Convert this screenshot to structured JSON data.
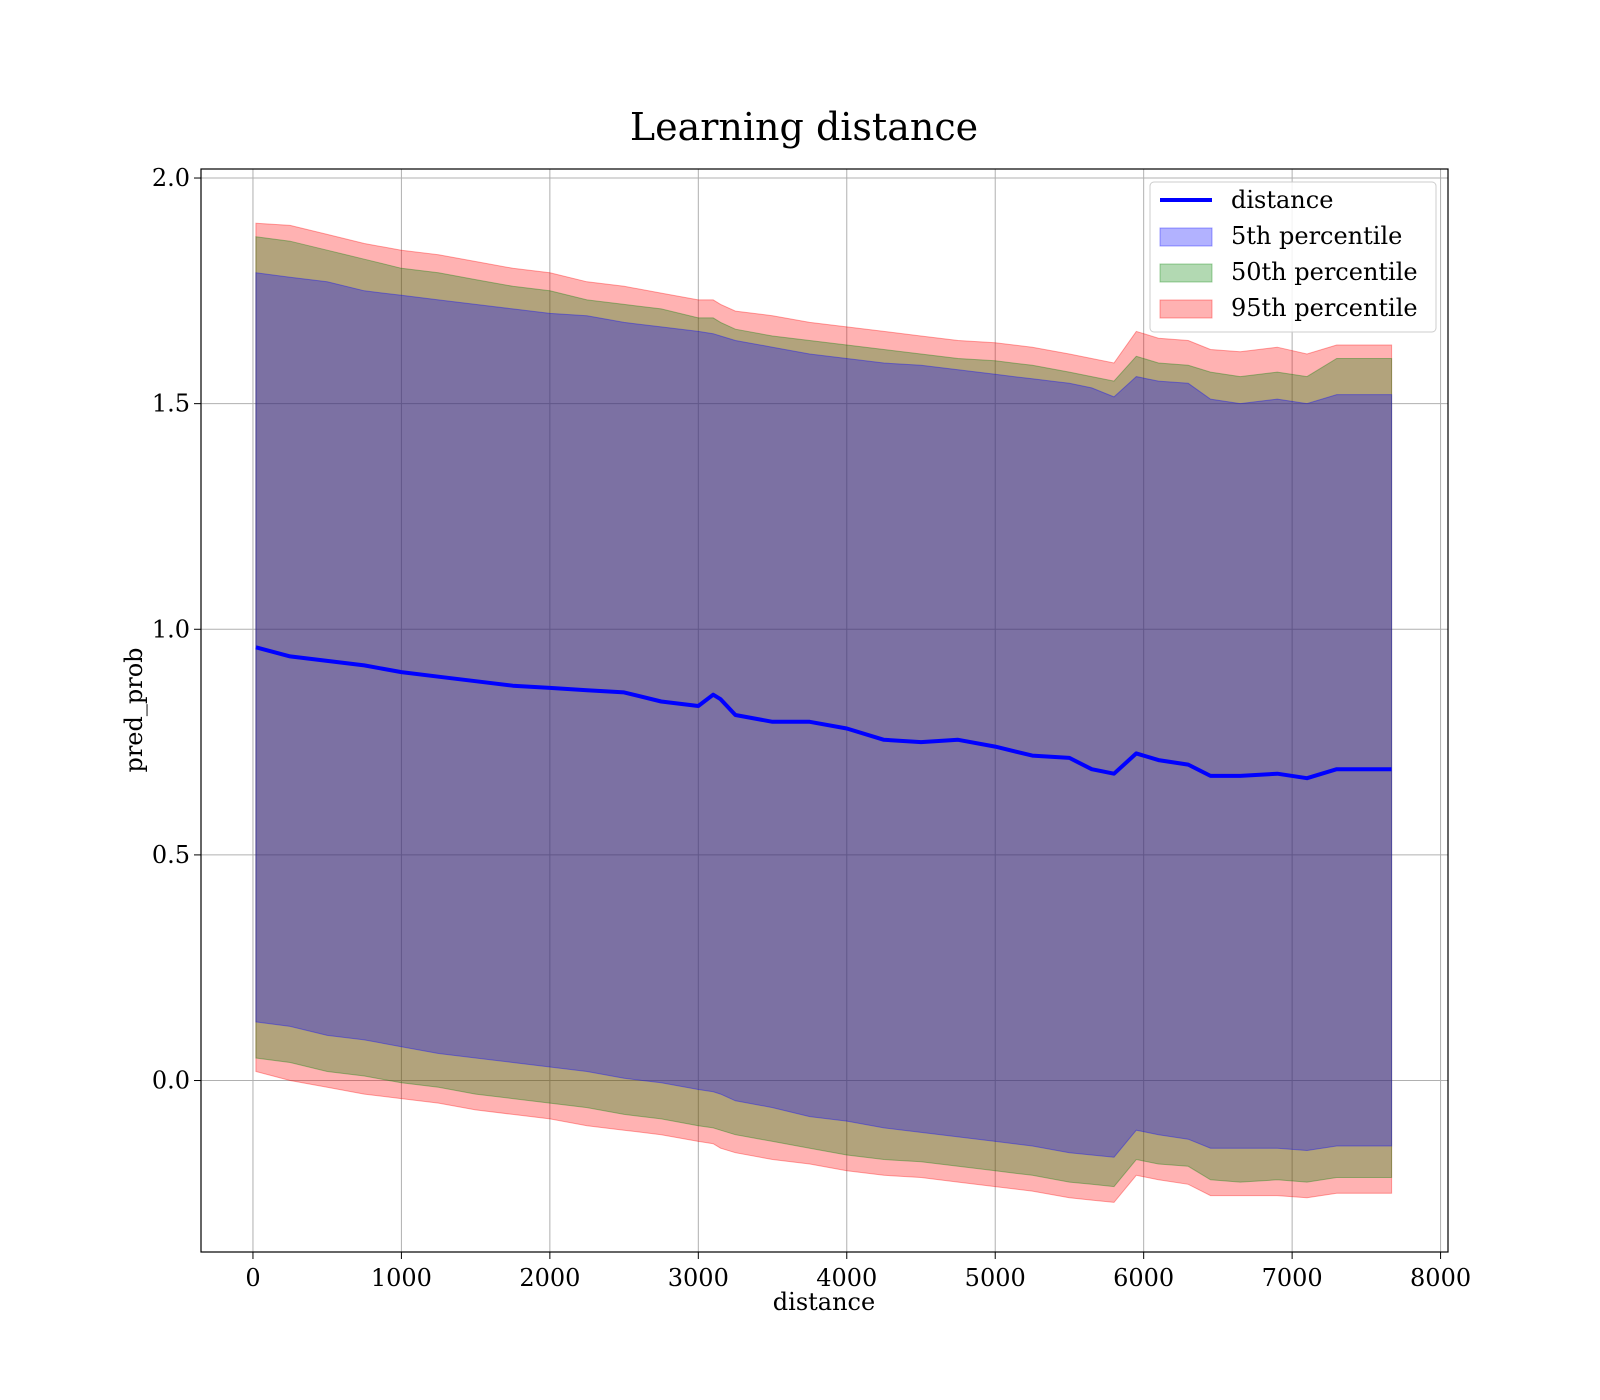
{
  "chart_data": {
    "type": "area",
    "title": "Learning distance",
    "xlabel": "distance",
    "ylabel": "pred_prob",
    "xlim": [
      -350,
      8050
    ],
    "ylim": [
      -0.38,
      2.02
    ],
    "xticks": [
      0,
      1000,
      2000,
      3000,
      4000,
      5000,
      6000,
      7000,
      8000
    ],
    "xtick_labels": [
      "0",
      "1000",
      "2000",
      "3000",
      "4000",
      "5000",
      "6000",
      "7000",
      "8000"
    ],
    "yticks": [
      0.0,
      0.5,
      1.0,
      1.5,
      2.0
    ],
    "ytick_labels": [
      "0.0",
      "0.5",
      "1.0",
      "1.5",
      "2.0"
    ],
    "grid": true,
    "legend_position": "top-right",
    "x": [
      20,
      250,
      500,
      750,
      1000,
      1250,
      1500,
      1750,
      2000,
      2250,
      2500,
      2750,
      3000,
      3100,
      3150,
      3250,
      3500,
      3750,
      4000,
      4250,
      4500,
      4750,
      5000,
      5250,
      5500,
      5650,
      5800,
      5950,
      6100,
      6300,
      6450,
      6650,
      6900,
      7100,
      7300,
      7670
    ],
    "series": [
      {
        "name": "distance",
        "kind": "line",
        "color": "#0000ff",
        "values": [
          0.96,
          0.94,
          0.93,
          0.92,
          0.905,
          0.895,
          0.885,
          0.875,
          0.87,
          0.865,
          0.86,
          0.84,
          0.83,
          0.855,
          0.845,
          0.81,
          0.795,
          0.795,
          0.78,
          0.755,
          0.75,
          0.755,
          0.74,
          0.72,
          0.715,
          0.69,
          0.68,
          0.725,
          0.71,
          0.7,
          0.675,
          0.675,
          0.68,
          0.67,
          0.69,
          0.69
        ]
      },
      {
        "name": "5th percentile",
        "kind": "band",
        "color": "#0000ff",
        "upper": [
          1.79,
          1.78,
          1.77,
          1.75,
          1.74,
          1.73,
          1.72,
          1.71,
          1.7,
          1.695,
          1.68,
          1.67,
          1.66,
          1.655,
          1.65,
          1.64,
          1.625,
          1.61,
          1.6,
          1.59,
          1.585,
          1.575,
          1.565,
          1.555,
          1.545,
          1.535,
          1.515,
          1.56,
          1.55,
          1.545,
          1.51,
          1.5,
          1.51,
          1.5,
          1.52,
          1.52
        ],
        "lower": [
          0.13,
          0.12,
          0.1,
          0.09,
          0.075,
          0.06,
          0.05,
          0.04,
          0.03,
          0.02,
          0.005,
          -0.005,
          -0.02,
          -0.025,
          -0.03,
          -0.045,
          -0.06,
          -0.08,
          -0.09,
          -0.105,
          -0.115,
          -0.125,
          -0.135,
          -0.145,
          -0.16,
          -0.165,
          -0.17,
          -0.11,
          -0.12,
          -0.13,
          -0.15,
          -0.15,
          -0.15,
          -0.155,
          -0.145,
          -0.145
        ]
      },
      {
        "name": "50th percentile",
        "kind": "band",
        "color": "#008000",
        "upper": [
          1.87,
          1.86,
          1.84,
          1.82,
          1.8,
          1.79,
          1.775,
          1.76,
          1.75,
          1.73,
          1.72,
          1.71,
          1.69,
          1.69,
          1.68,
          1.665,
          1.65,
          1.64,
          1.63,
          1.62,
          1.61,
          1.6,
          1.595,
          1.585,
          1.57,
          1.56,
          1.55,
          1.605,
          1.59,
          1.585,
          1.57,
          1.56,
          1.57,
          1.56,
          1.6,
          1.6
        ],
        "lower": [
          0.05,
          0.04,
          0.02,
          0.01,
          -0.005,
          -0.015,
          -0.03,
          -0.04,
          -0.05,
          -0.06,
          -0.075,
          -0.085,
          -0.1,
          -0.105,
          -0.11,
          -0.12,
          -0.135,
          -0.15,
          -0.165,
          -0.175,
          -0.18,
          -0.19,
          -0.2,
          -0.21,
          -0.225,
          -0.23,
          -0.235,
          -0.175,
          -0.185,
          -0.19,
          -0.22,
          -0.225,
          -0.22,
          -0.225,
          -0.215,
          -0.215
        ]
      },
      {
        "name": "95th percentile",
        "kind": "band",
        "color": "#ff0000",
        "upper": [
          1.9,
          1.895,
          1.875,
          1.855,
          1.84,
          1.83,
          1.815,
          1.8,
          1.79,
          1.77,
          1.76,
          1.745,
          1.73,
          1.73,
          1.72,
          1.705,
          1.695,
          1.68,
          1.67,
          1.66,
          1.65,
          1.64,
          1.635,
          1.625,
          1.61,
          1.6,
          1.59,
          1.66,
          1.645,
          1.64,
          1.62,
          1.615,
          1.625,
          1.61,
          1.63,
          1.63
        ],
        "lower": [
          0.02,
          0.0,
          -0.015,
          -0.03,
          -0.04,
          -0.05,
          -0.065,
          -0.075,
          -0.085,
          -0.1,
          -0.11,
          -0.12,
          -0.135,
          -0.14,
          -0.15,
          -0.16,
          -0.175,
          -0.185,
          -0.2,
          -0.21,
          -0.215,
          -0.225,
          -0.235,
          -0.245,
          -0.26,
          -0.265,
          -0.27,
          -0.21,
          -0.22,
          -0.23,
          -0.255,
          -0.255,
          -0.255,
          -0.26,
          -0.25,
          -0.25
        ]
      }
    ]
  }
}
